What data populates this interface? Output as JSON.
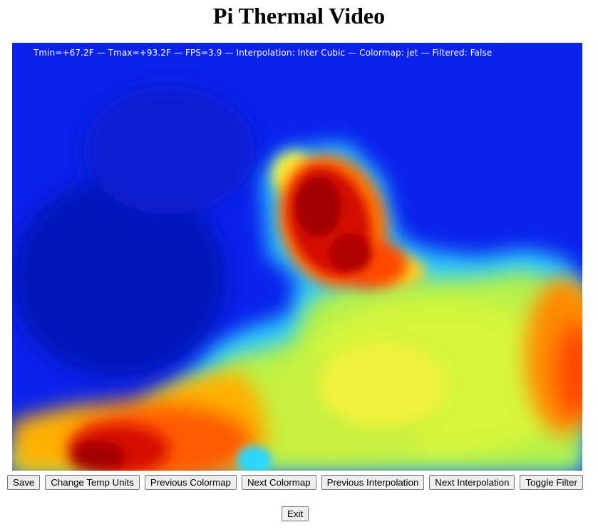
{
  "page": {
    "title": "Pi Thermal Video"
  },
  "video": {
    "overlay": "Tmin=+67.2F — Tmax=+93.2F — FPS=3.9 — Interpolation: Inter Cubic — Colormap: jet — Filtered: False",
    "colormap_colors": {
      "cold": "#0a1ad8",
      "cool": "#2a8cff",
      "mid": "#b8f24a",
      "warm": "#ffb000",
      "hot": "#a80000"
    }
  },
  "controls": {
    "save": "Save",
    "change_temp_units": "Change Temp Units",
    "previous_colormap": "Previous Colormap",
    "next_colormap": "Next Colormap",
    "previous_interpolation": "Previous Interpolation",
    "next_interpolation": "Next Interpolation",
    "toggle_filter": "Toggle Filter",
    "exit": "Exit"
  }
}
